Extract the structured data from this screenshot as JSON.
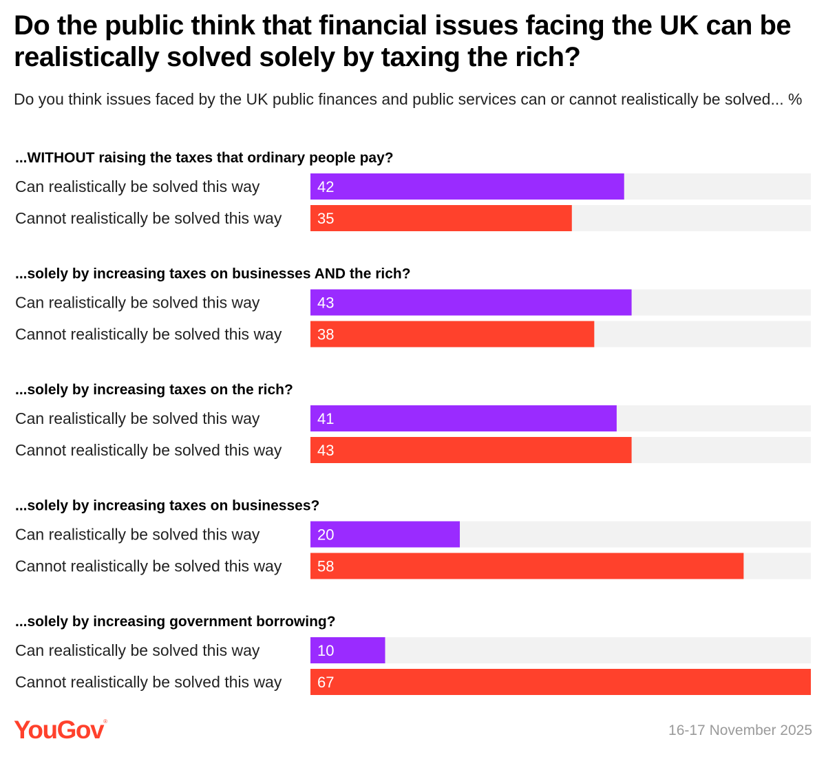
{
  "title": "Do the public think that financial issues facing the UK can be realistically solved solely by taxing the rich?",
  "subtitle": "Do you think issues faced by the UK public finances and public services can or cannot realistically be solved... %",
  "footer": {
    "brand": "YouGov",
    "date": "16-17 November 2025"
  },
  "colors": {
    "can": "#9a2bff",
    "cannot": "#ff412c",
    "track": "#f2f2f2"
  },
  "chart_data": {
    "type": "bar",
    "orientation": "horizontal",
    "xlim": [
      0,
      67
    ],
    "series_labels": [
      "Can realistically be solved this way",
      "Cannot realistically be solved this way"
    ],
    "groups": [
      {
        "question": "...WITHOUT raising the taxes that ordinary people pay?",
        "values": [
          42,
          35
        ]
      },
      {
        "question": "...solely by increasing taxes on businesses AND the rich?",
        "values": [
          43,
          38
        ]
      },
      {
        "question": "...solely by increasing taxes on the rich?",
        "values": [
          41,
          43
        ]
      },
      {
        "question": "...solely by increasing taxes on businesses?",
        "values": [
          20,
          58
        ]
      },
      {
        "question": "...solely by increasing government borrowing?",
        "values": [
          10,
          67
        ]
      }
    ]
  }
}
